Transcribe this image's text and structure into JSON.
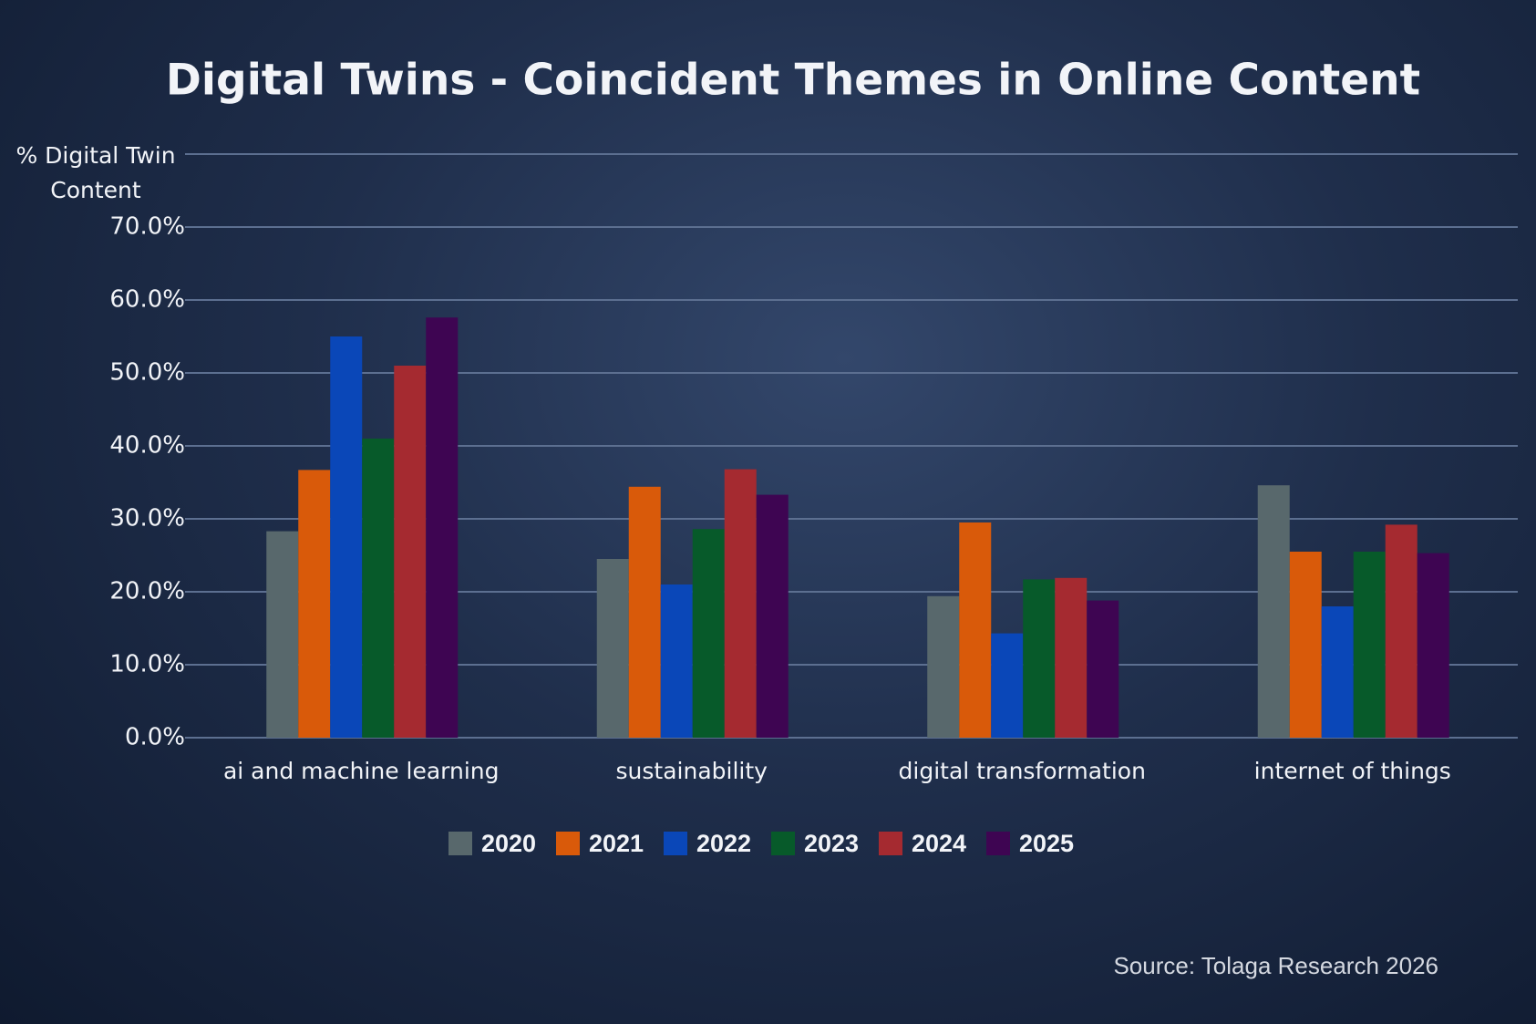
{
  "chart_data": {
    "type": "bar",
    "title": "Digital Twins - Coincident Themes in Online Content",
    "y_label": "% Digital Twin Content",
    "source": "Source: Tolaga Research 2026",
    "categories": [
      "ai and machine learning",
      "sustainability",
      "digital transformation",
      "internet of things"
    ],
    "series": [
      {
        "name": "2020",
        "color": "#58686c",
        "values": [
          28.3,
          24.5,
          19.4,
          34.6
        ]
      },
      {
        "name": "2021",
        "color": "#d95a0a",
        "values": [
          36.7,
          34.4,
          29.5,
          25.5
        ]
      },
      {
        "name": "2022",
        "color": "#0a47b8",
        "values": [
          55.0,
          21.0,
          14.3,
          18.0
        ]
      },
      {
        "name": "2023",
        "color": "#075a2a",
        "values": [
          41.0,
          28.6,
          21.7,
          25.5
        ]
      },
      {
        "name": "2024",
        "color": "#a52a30",
        "values": [
          51.0,
          36.8,
          21.9,
          29.2
        ]
      },
      {
        "name": "2025",
        "color": "#3e0552",
        "values": [
          57.6,
          33.3,
          18.8,
          25.3
        ]
      }
    ],
    "ylim": [
      0,
      80
    ],
    "yticks": [
      {
        "value": 0,
        "label": "0.0%"
      },
      {
        "value": 10,
        "label": "10.0%"
      },
      {
        "value": 20,
        "label": "20.0%"
      },
      {
        "value": 30,
        "label": "30.0%"
      },
      {
        "value": 40,
        "label": "40.0%"
      },
      {
        "value": 50,
        "label": "50.0%"
      },
      {
        "value": 60,
        "label": "60.0%"
      },
      {
        "value": 70,
        "label": "70.0%"
      }
    ],
    "grid": true,
    "legend": "bottom"
  }
}
